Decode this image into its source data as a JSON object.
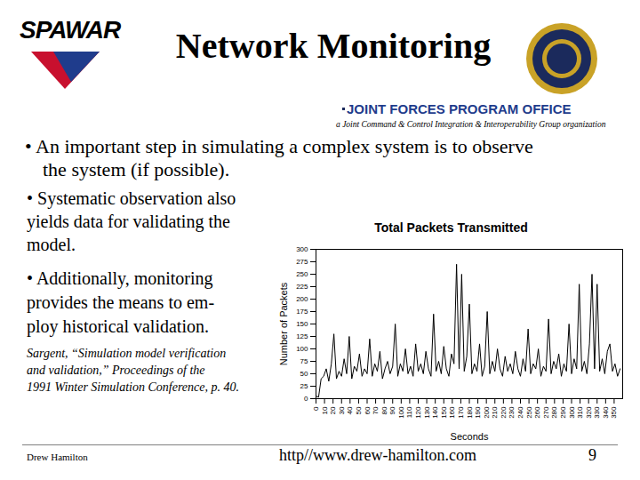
{
  "header": {
    "logo_text": "SPAWAR",
    "title": "Network Monitoring",
    "office": "JOINT FORCES PROGRAM OFFICE",
    "office_subtitle": "a Joint Command & Control Integration & Interoperability Group organization"
  },
  "intro": [
    "• An important step in simulating a complex system is to observe",
    "the system (if possible)."
  ],
  "side_bullets": [
    [
      "• Systematic observation also",
      "yields data for validating the",
      "model."
    ],
    [
      "• Additionally, monitoring",
      "provides the means to em-",
      "ploy historical validation."
    ]
  ],
  "citation": [
    "Sargent, “Simulation model verification",
    "and validation,” Proceedings of the",
    "1991 Winter Simulation Conference,  p. 40."
  ],
  "footer": {
    "author": "Drew Hamilton",
    "url": "http//www.drew-hamilton.com",
    "page": 9
  },
  "chart_data": {
    "type": "line",
    "title": "Total Packets Transmitted",
    "x_label": "Seconds",
    "y_label": "Number of Packets",
    "color": "#000000",
    "grid": false,
    "xlim": [
      0,
      360
    ],
    "ylim": [
      0,
      300
    ],
    "xticks": [
      0,
      10,
      20,
      30,
      40,
      50,
      60,
      70,
      80,
      90,
      100,
      110,
      120,
      130,
      140,
      150,
      160,
      170,
      180,
      190,
      200,
      210,
      220,
      230,
      240,
      250,
      260,
      270,
      280,
      290,
      300,
      310,
      320,
      330,
      340,
      350
    ],
    "yticks": [
      0,
      25,
      50,
      75,
      100,
      125,
      150,
      175,
      200,
      225,
      250,
      275,
      300
    ],
    "x": [
      0,
      3,
      6,
      9,
      12,
      15,
      18,
      21,
      24,
      27,
      30,
      33,
      36,
      39,
      42,
      45,
      48,
      51,
      54,
      57,
      60,
      63,
      66,
      69,
      72,
      75,
      78,
      81,
      84,
      87,
      90,
      93,
      96,
      99,
      102,
      105,
      108,
      111,
      114,
      117,
      120,
      123,
      126,
      129,
      132,
      135,
      138,
      141,
      144,
      147,
      150,
      153,
      156,
      159,
      162,
      165,
      168,
      171,
      174,
      177,
      180,
      183,
      186,
      189,
      192,
      195,
      198,
      201,
      204,
      207,
      210,
      213,
      216,
      219,
      222,
      225,
      228,
      231,
      234,
      237,
      240,
      243,
      246,
      249,
      252,
      255,
      258,
      261,
      264,
      267,
      270,
      273,
      276,
      279,
      282,
      285,
      288,
      291,
      294,
      297,
      300,
      303,
      306,
      309,
      312,
      315,
      318,
      321,
      324,
      327,
      330,
      333,
      336,
      339,
      342,
      345,
      348,
      351,
      354,
      357
    ],
    "values": [
      5,
      3,
      40,
      45,
      60,
      35,
      70,
      130,
      40,
      55,
      45,
      80,
      50,
      125,
      40,
      65,
      55,
      90,
      45,
      60,
      50,
      120,
      45,
      70,
      55,
      95,
      40,
      60,
      75,
      50,
      65,
      150,
      45,
      70,
      55,
      100,
      50,
      65,
      45,
      110,
      55,
      70,
      50,
      95,
      60,
      45,
      170,
      55,
      75,
      50,
      105,
      60,
      45,
      90,
      70,
      270,
      60,
      250,
      55,
      85,
      190,
      50,
      70,
      55,
      110,
      45,
      65,
      175,
      50,
      75,
      55,
      100,
      60,
      45,
      85,
      55,
      70,
      50,
      95,
      60,
      45,
      80,
      55,
      140,
      50,
      70,
      60,
      100,
      45,
      65,
      55,
      160,
      50,
      75,
      60,
      90,
      45,
      70,
      55,
      150,
      50,
      80,
      60,
      230,
      55,
      75,
      50,
      110,
      250,
      60,
      230,
      55,
      80,
      50,
      95,
      110,
      55,
      70,
      45,
      60
    ]
  }
}
